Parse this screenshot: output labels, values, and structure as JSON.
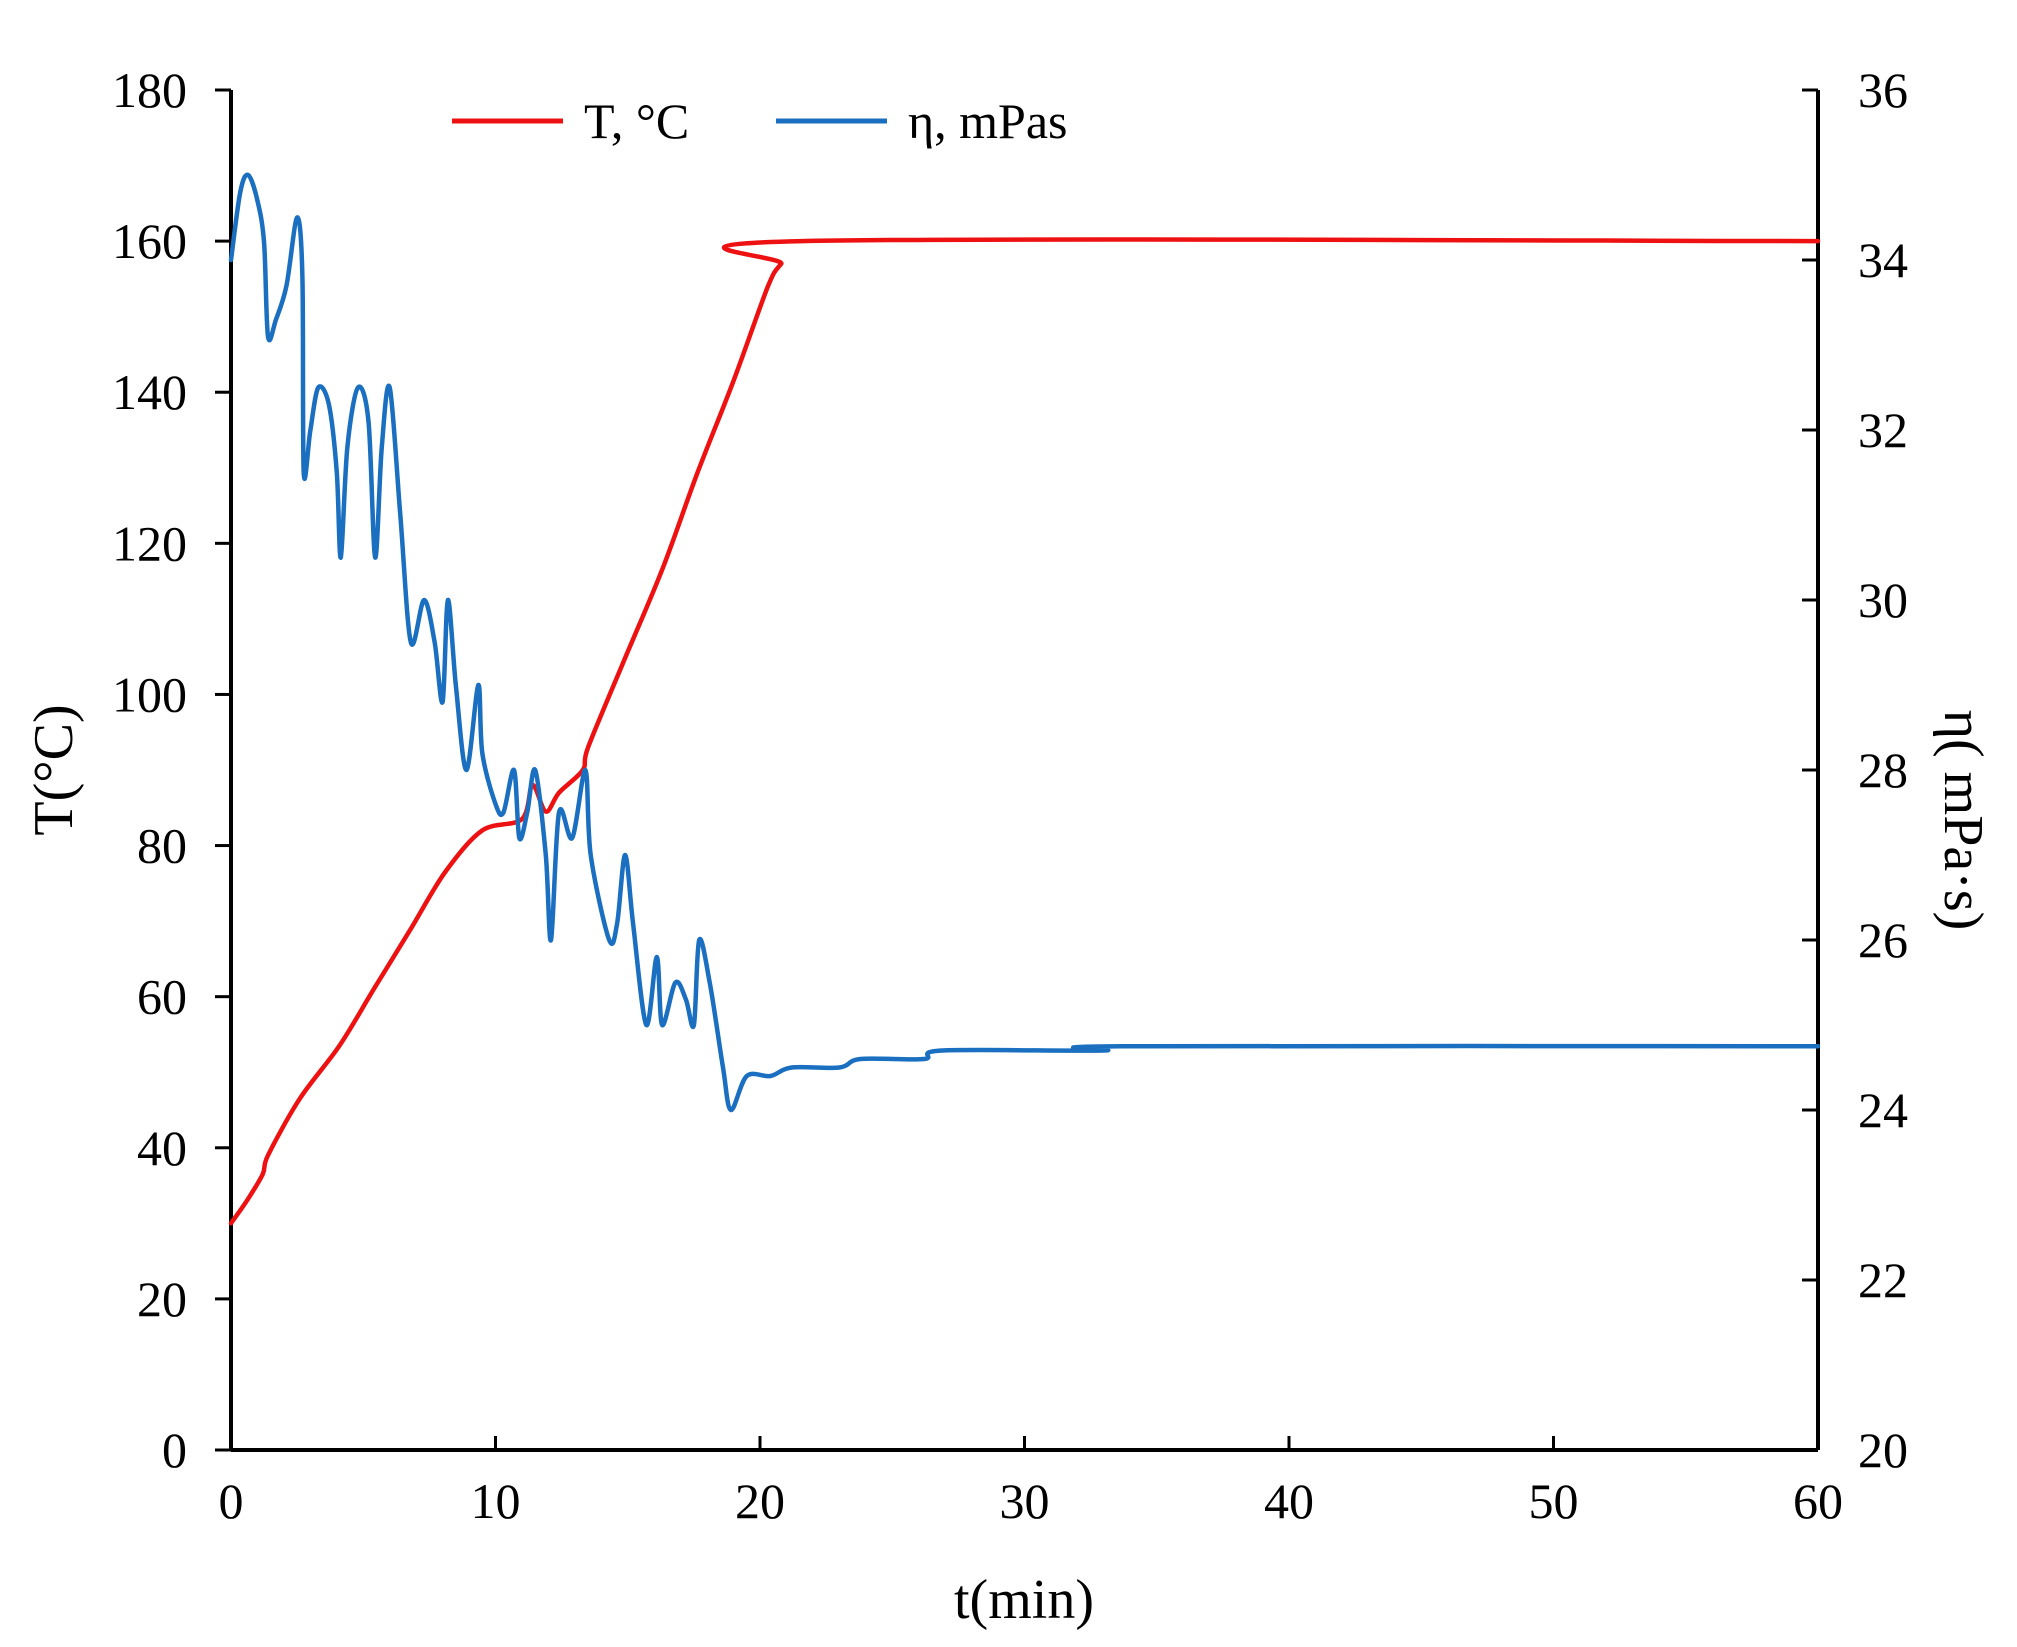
{
  "chart_data": {
    "type": "line",
    "title": "",
    "xlabel": "t(min)",
    "ylabel_left": "T(°C)",
    "ylabel_right": "η( mPa·s)",
    "xlim": [
      0,
      60
    ],
    "ylim_left": [
      0,
      180
    ],
    "ylim_right": [
      20,
      36
    ],
    "x_ticks": [
      "0",
      "10",
      "20",
      "30",
      "40",
      "50",
      "60"
    ],
    "y_left_ticks": [
      "0",
      "20",
      "40",
      "60",
      "80",
      "100",
      "120",
      "140",
      "160",
      "180"
    ],
    "y_right_ticks": [
      "20",
      "22",
      "24",
      "26",
      "28",
      "30",
      "32",
      "34",
      "36"
    ],
    "grid": false,
    "legend_position": "top-left",
    "series": [
      {
        "name": "T, °C",
        "axis": "left",
        "color": "#ee1111",
        "points": [
          [
            0,
            30
          ],
          [
            0.6,
            33
          ],
          [
            1.2,
            36.5
          ],
          [
            1.4,
            39
          ],
          [
            2.6,
            46.5
          ],
          [
            4.1,
            53.5
          ],
          [
            5.4,
            61
          ],
          [
            6.8,
            69
          ],
          [
            8.1,
            76.5
          ],
          [
            9.5,
            82
          ],
          [
            11.0,
            83.5
          ],
          [
            11.4,
            88
          ],
          [
            11.9,
            84.5
          ],
          [
            12.4,
            87
          ],
          [
            13.3,
            90
          ],
          [
            13.5,
            93
          ],
          [
            14.8,
            104
          ],
          [
            16.3,
            116.5
          ],
          [
            17.6,
            129
          ],
          [
            19.0,
            141.5
          ],
          [
            20.3,
            154
          ],
          [
            20.8,
            157
          ],
          [
            21.6,
            160
          ],
          [
            60,
            160
          ]
        ]
      },
      {
        "name": "η, mPas",
        "axis": "right",
        "color": "#1a6fc0",
        "points": [
          [
            0,
            34
          ],
          [
            0.35,
            34.8
          ],
          [
            0.65,
            35
          ],
          [
            1.0,
            34.7
          ],
          [
            1.25,
            34.2
          ],
          [
            1.4,
            33.1
          ],
          [
            1.7,
            33.3
          ],
          [
            2.1,
            33.7
          ],
          [
            2.5,
            34.5
          ],
          [
            2.7,
            33.8
          ],
          [
            2.75,
            31.5
          ],
          [
            3.0,
            32.0
          ],
          [
            3.3,
            32.5
          ],
          [
            3.7,
            32.3
          ],
          [
            4.0,
            31.5
          ],
          [
            4.15,
            30.5
          ],
          [
            4.4,
            31.8
          ],
          [
            4.8,
            32.5
          ],
          [
            5.2,
            32.1
          ],
          [
            5.45,
            30.5
          ],
          [
            5.7,
            31.8
          ],
          [
            6.0,
            32.5
          ],
          [
            6.4,
            31.0
          ],
          [
            6.8,
            29.5
          ],
          [
            7.3,
            30.0
          ],
          [
            7.7,
            29.5
          ],
          [
            8.0,
            28.8
          ],
          [
            8.2,
            30.0
          ],
          [
            8.5,
            29.0
          ],
          [
            8.9,
            28.0
          ],
          [
            9.35,
            29.0
          ],
          [
            9.5,
            28.2
          ],
          [
            10.0,
            27.6
          ],
          [
            10.3,
            27.5
          ],
          [
            10.7,
            28.0
          ],
          [
            10.9,
            27.2
          ],
          [
            11.2,
            27.5
          ],
          [
            11.5,
            28.0
          ],
          [
            11.9,
            27.0
          ],
          [
            12.1,
            26.0
          ],
          [
            12.4,
            27.5
          ],
          [
            12.9,
            27.2
          ],
          [
            13.4,
            28.0
          ],
          [
            13.6,
            27.0
          ],
          [
            14.3,
            26.0
          ],
          [
            14.6,
            26.2
          ],
          [
            14.9,
            27.0
          ],
          [
            15.2,
            26.2
          ],
          [
            15.7,
            25.0
          ],
          [
            16.1,
            25.8
          ],
          [
            16.3,
            25.0
          ],
          [
            16.8,
            25.5
          ],
          [
            17.2,
            25.3
          ],
          [
            17.5,
            25.0
          ],
          [
            17.7,
            26.0
          ],
          [
            18.1,
            25.5
          ],
          [
            18.6,
            24.5
          ],
          [
            18.9,
            24.0
          ],
          [
            19.5,
            24.4
          ],
          [
            20.4,
            24.4
          ],
          [
            21.2,
            24.5
          ],
          [
            23.0,
            24.5
          ],
          [
            23.8,
            24.6
          ],
          [
            26.2,
            24.6
          ],
          [
            26.9,
            24.7
          ],
          [
            33.0,
            24.7
          ],
          [
            33.7,
            24.75
          ],
          [
            60,
            24.75
          ]
        ]
      }
    ]
  }
}
